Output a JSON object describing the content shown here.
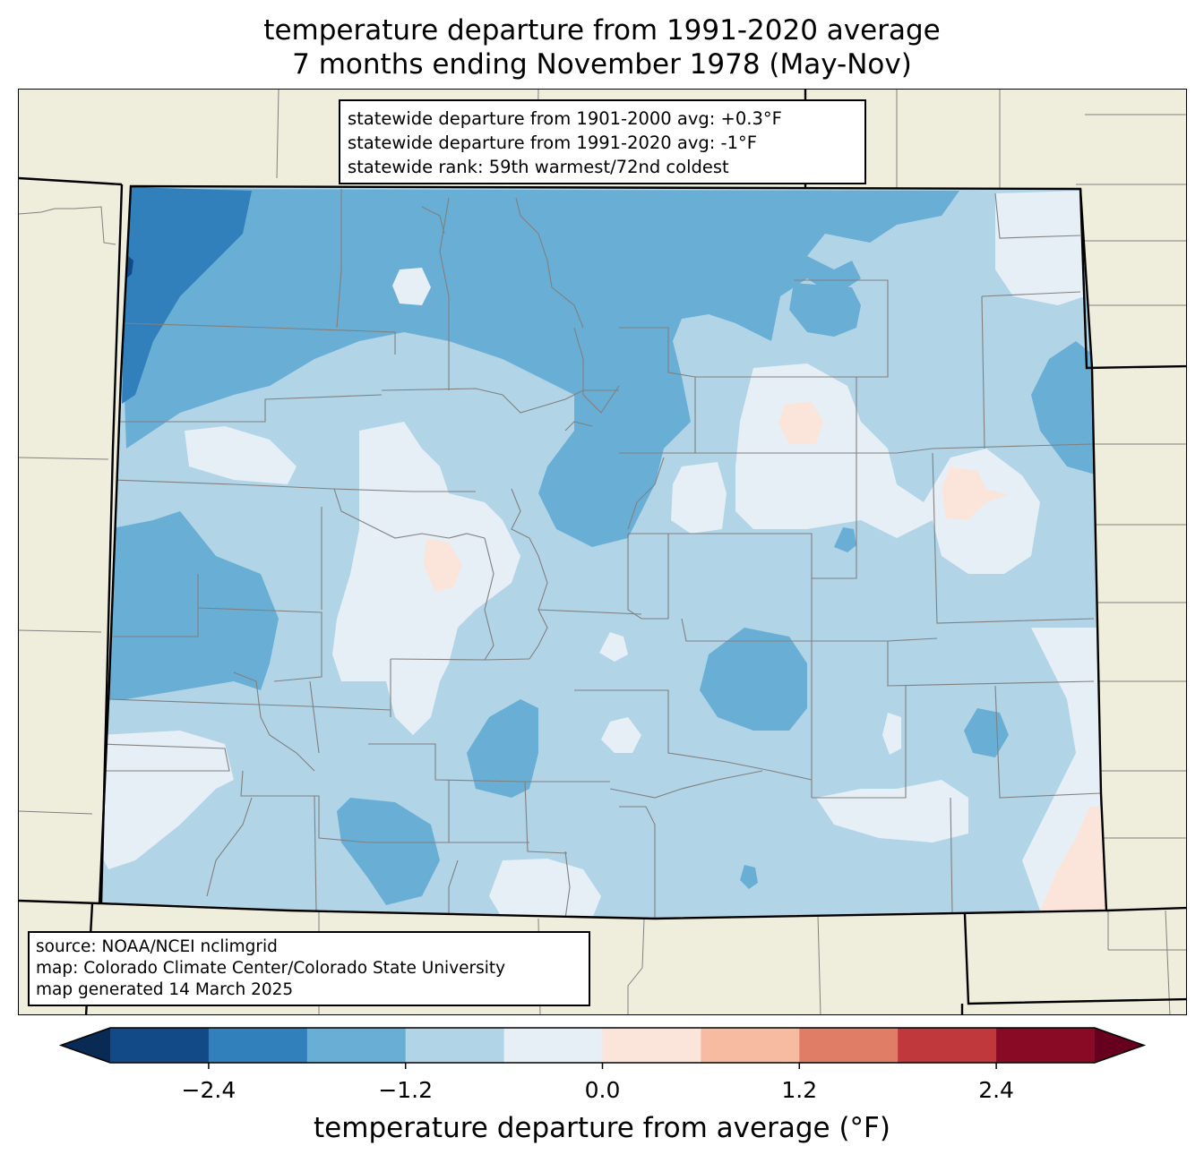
{
  "title": {
    "line1": "temperature departure from 1991-2020 average",
    "line2": "7 months ending November 1978 (May-Nov)"
  },
  "stats": {
    "line1": "statewide departure from 1901-2000 avg: +0.3°F",
    "line2": "statewide departure from 1991-2020 avg: -1°F",
    "line3": "statewide rank: 59th warmest/72nd coldest"
  },
  "source": {
    "line1": "source: NOAA/NCEI nclimgrid",
    "line2": "map: Colorado Climate Center/Colorado State University",
    "line3": "map generated 14 March 2025"
  },
  "colorbar": {
    "label": "temperature departure from average (°F)",
    "ticks": [
      "−2.4",
      "−1.2",
      "0.0",
      "1.2",
      "2.4"
    ],
    "tick_values": [
      -2.4,
      -1.2,
      0.0,
      1.2,
      2.4
    ],
    "range": [
      -3.0,
      3.0
    ],
    "step": 0.6,
    "under_color": "#082a54",
    "over_color": "#67001f",
    "colors": [
      "#124a87",
      "#317fbb",
      "#69aed4",
      "#b2d4e7",
      "#e6eff6",
      "#fbe5da",
      "#f7bba1",
      "#e07d66",
      "#c0383c",
      "#890a25"
    ]
  },
  "map_colors": {
    "land_outside": "#efeedc",
    "state_border": "#000000",
    "county_lines": "#808080"
  }
}
